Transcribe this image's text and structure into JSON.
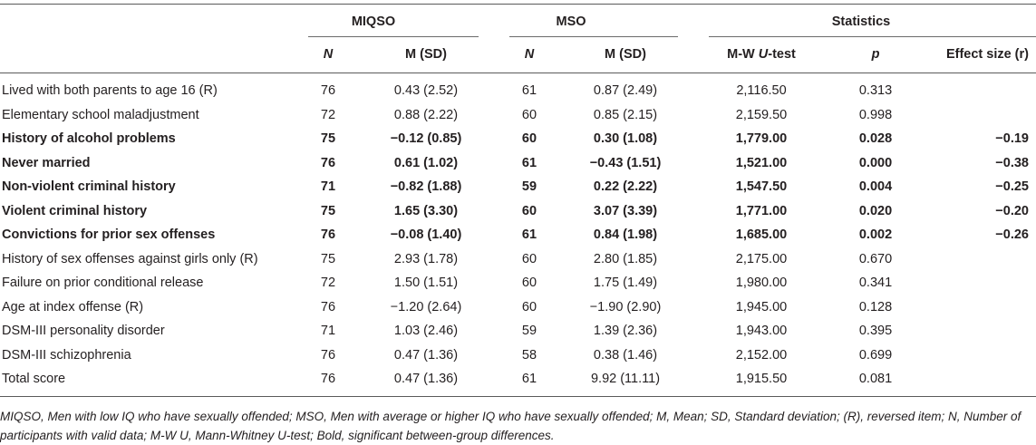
{
  "header": {
    "group_miqso": "MIQSO",
    "group_mso": "MSO",
    "group_stats": "Statistics",
    "col_n1": "N",
    "col_msd1": "M (SD)",
    "col_n2": "N",
    "col_msd2": "M (SD)",
    "col_mwu_prefix": "M-W ",
    "col_mwu_italic": "U",
    "col_mwu_suffix": "-test",
    "col_p": "p",
    "col_effect": "Effect size (r)"
  },
  "rows": [
    {
      "label": "Lived with both parents to age 16 (R)",
      "n1": "76",
      "msd1": "0.43 (2.52)",
      "n2": "61",
      "msd2": "0.87 (2.49)",
      "u": "2,116.50",
      "p": "0.313",
      "r": ""
    },
    {
      "label": "Elementary school maladjustment",
      "n1": "72",
      "msd1": "0.88 (2.22)",
      "n2": "60",
      "msd2": "0.85 (2.15)",
      "u": "2,159.50",
      "p": "0.998",
      "r": ""
    },
    {
      "label": "History of alcohol problems",
      "n1": "75",
      "msd1": "−0.12 (0.85)",
      "n2": "60",
      "msd2": "0.30 (1.08)",
      "u": "1,779.00",
      "p": "0.028",
      "r": "−0.19"
    },
    {
      "label": "Never married",
      "n1": "76",
      "msd1": "0.61 (1.02)",
      "n2": "61",
      "msd2": "−0.43 (1.51)",
      "u": "1,521.00",
      "p": "0.000",
      "r": "−0.38"
    },
    {
      "label": "Non-violent criminal history",
      "n1": "71",
      "msd1": "−0.82 (1.88)",
      "n2": "59",
      "msd2": "0.22 (2.22)",
      "u": "1,547.50",
      "p": "0.004",
      "r": "−0.25"
    },
    {
      "label": "Violent criminal history",
      "n1": "75",
      "msd1": "1.65 (3.30)",
      "n2": "60",
      "msd2": "3.07 (3.39)",
      "u": "1,771.00",
      "p": "0.020",
      "r": "−0.20"
    },
    {
      "label": "Convictions for prior sex offenses",
      "n1": "76",
      "msd1": "−0.08 (1.40)",
      "n2": "61",
      "msd2": "0.84 (1.98)",
      "u": "1,685.00",
      "p": "0.002",
      "r": "−0.26"
    },
    {
      "label": "History of sex offenses against girls only (R)",
      "n1": "75",
      "msd1": "2.93 (1.78)",
      "n2": "60",
      "msd2": "2.80 (1.85)",
      "u": "2,175.00",
      "p": "0.670",
      "r": ""
    },
    {
      "label": "Failure on prior conditional release",
      "n1": "72",
      "msd1": "1.50 (1.51)",
      "n2": "60",
      "msd2": "1.75 (1.49)",
      "u": "1,980.00",
      "p": "0.341",
      "r": ""
    },
    {
      "label": "Age at index offense (R)",
      "n1": "76",
      "msd1": "−1.20 (2.64)",
      "n2": "60",
      "msd2": "−1.90 (2.90)",
      "u": "1,945.00",
      "p": "0.128",
      "r": ""
    },
    {
      "label": "DSM-III personality disorder",
      "n1": "71",
      "msd1": "1.03 (2.46)",
      "n2": "59",
      "msd2": "1.39 (2.36)",
      "u": "1,943.00",
      "p": "0.395",
      "r": ""
    },
    {
      "label": "DSM-III schizophrenia",
      "n1": "76",
      "msd1": "0.47 (1.36)",
      "n2": "58",
      "msd2": "0.38 (1.46)",
      "u": "2,152.00",
      "p": "0.699",
      "r": ""
    },
    {
      "label": "Total score",
      "n1": "76",
      "msd1": "0.47 (1.36)",
      "n2": "61",
      "msd2": "9.92 (11.11)",
      "u": "1,915.50",
      "p": "0.081",
      "r": ""
    }
  ],
  "bold_rows": [
    2,
    3,
    4,
    5,
    6
  ],
  "footnote": "MIQSO, Men with low IQ who have sexually offended; MSO, Men with average or higher IQ who have sexually offended; M, Mean; SD, Standard deviation; (R), reversed item; N, Number of participants with valid data; M-W U, Mann-Whitney U-test; Bold, significant between-group differences."
}
